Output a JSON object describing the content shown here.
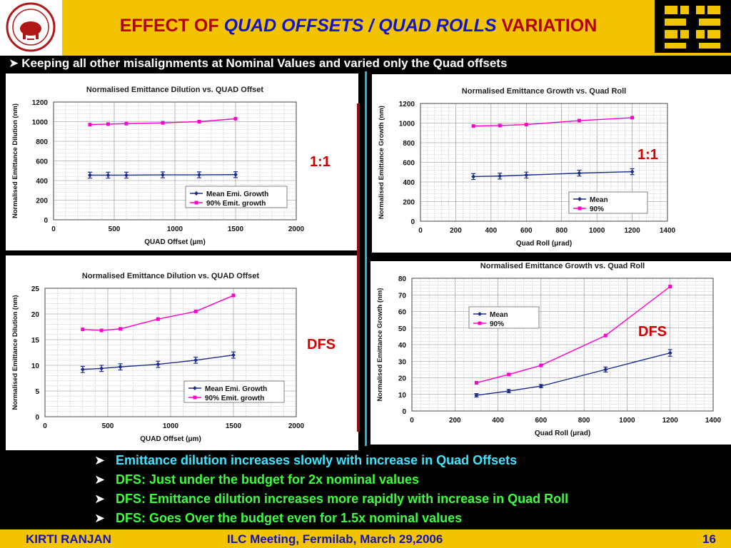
{
  "header": {
    "title_part1": "EFFECT OF ",
    "title_part2": "QUAD OFFSETS / QUAD ROLLS",
    "title_part3": " VARIATION",
    "subtitle": "Keeping all other misalignments at Nominal Values and varied only the Quad offsets",
    "arrow_icon": "arrow-bullet-icon"
  },
  "labels": {
    "ratio_top_left": "1:1",
    "ratio_top_right": "1:1",
    "dfs_bottom_left": "DFS",
    "dfs_bottom_right": "DFS"
  },
  "bullets": [
    {
      "text": "Emittance dilution increases slowly with increase in Quad Offsets",
      "color": "#3ce6ff"
    },
    {
      "text": "DFS: Just under the budget for 2x nominal values",
      "color": "#3cff3c"
    },
    {
      "text": "DFS: Emittance dilution increases more rapidly with increase in Quad Roll",
      "color": "#3cff3c"
    },
    {
      "text": "DFS: Goes Over the budget even for 1.5x nominal values",
      "color": "#3cff3c"
    }
  ],
  "footer": {
    "author": "KIRTI RANJAN",
    "meeting": "ILC Meeting, Fermilab, March 29,2006",
    "page": "16"
  },
  "colors": {
    "mean": "#1a2a8c",
    "p90": "#ff00cc",
    "accent_yellow": "#f2c400",
    "title_red": "#b30000"
  },
  "chart_data": [
    {
      "type": "line",
      "title": "Normalised Emittance Dilution vs. QUAD Offset",
      "xlabel": "QUAD Offset (μm)",
      "ylabel": "Normalised Emittance Dilution (nm)",
      "xlim": [
        0,
        2000
      ],
      "ylim": [
        0,
        1200
      ],
      "xticks": [
        0,
        500,
        1000,
        1500,
        2000
      ],
      "yticks": [
        0,
        200,
        400,
        600,
        800,
        1000,
        1200
      ],
      "legend": "bottom-right",
      "series": [
        {
          "name": "Mean Emi. Growth",
          "x": [
            300,
            450,
            600,
            900,
            1200,
            1500
          ],
          "y": [
            455,
            455,
            455,
            458,
            458,
            460
          ],
          "err": [
            30,
            30,
            30,
            30,
            30,
            30
          ]
        },
        {
          "name": "90% Emit. growth",
          "x": [
            300,
            450,
            600,
            900,
            1200,
            1500
          ],
          "y": [
            970,
            975,
            980,
            988,
            1000,
            1030
          ]
        }
      ]
    },
    {
      "type": "line",
      "title": "Normalised Emittance Growth vs. Quad Roll",
      "xlabel": "Quad Roll (μrad)",
      "ylabel": "Normalised Emittance Growth (nm)",
      "xlim": [
        0,
        1400
      ],
      "ylim": [
        0,
        1200
      ],
      "xticks": [
        0,
        200,
        400,
        600,
        800,
        1000,
        1200,
        1400
      ],
      "yticks": [
        0,
        200,
        400,
        600,
        800,
        1000,
        1200
      ],
      "legend": "bottom-right",
      "series": [
        {
          "name": "Mean",
          "x": [
            300,
            450,
            600,
            900,
            1200
          ],
          "y": [
            455,
            460,
            470,
            490,
            505
          ],
          "err": [
            30,
            30,
            30,
            30,
            30
          ]
        },
        {
          "name": "90%",
          "x": [
            300,
            450,
            600,
            900,
            1200
          ],
          "y": [
            970,
            975,
            985,
            1025,
            1055
          ]
        }
      ]
    },
    {
      "type": "line",
      "title": "Normalised Emittance Dilution vs. QUAD Offset",
      "xlabel": "QUAD Offset (μm)",
      "ylabel": "Normalised Emittance Dilution (nm)",
      "xlim": [
        0,
        2000
      ],
      "ylim": [
        0,
        25
      ],
      "xticks": [
        0,
        500,
        1000,
        1500,
        2000
      ],
      "yticks": [
        0,
        5,
        10,
        15,
        20,
        25
      ],
      "legend": "bottom-right",
      "series": [
        {
          "name": "Mean Emi. Growth",
          "x": [
            300,
            450,
            600,
            900,
            1200,
            1500
          ],
          "y": [
            9.2,
            9.4,
            9.7,
            10.2,
            11.0,
            12.0
          ],
          "err": [
            0.6,
            0.6,
            0.6,
            0.6,
            0.6,
            0.6
          ]
        },
        {
          "name": "90% Emit. growth",
          "x": [
            300,
            450,
            600,
            900,
            1200,
            1500
          ],
          "y": [
            17.0,
            16.8,
            17.1,
            19.0,
            20.5,
            23.6
          ]
        }
      ]
    },
    {
      "type": "line",
      "title": "Normalised Emittance Growth vs. Quad Roll",
      "xlabel": "Quad Roll (μrad)",
      "ylabel": "Normalised Emittance Growth (nm)",
      "xlim": [
        0,
        1400
      ],
      "ylim": [
        0,
        80
      ],
      "xticks": [
        0,
        200,
        400,
        600,
        800,
        1000,
        1200,
        1400
      ],
      "yticks": [
        0,
        10,
        20,
        30,
        40,
        50,
        60,
        70,
        80
      ],
      "legend": "top-left",
      "series": [
        {
          "name": "Mean",
          "x": [
            300,
            450,
            600,
            900,
            1200
          ],
          "y": [
            9.5,
            12,
            15,
            25,
            35
          ],
          "err": [
            1.0,
            1.0,
            1.0,
            1.5,
            2.0
          ]
        },
        {
          "name": "90%",
          "x": [
            300,
            450,
            600,
            900,
            1200
          ],
          "y": [
            17,
            22,
            27.5,
            45.5,
            75
          ]
        }
      ]
    }
  ]
}
